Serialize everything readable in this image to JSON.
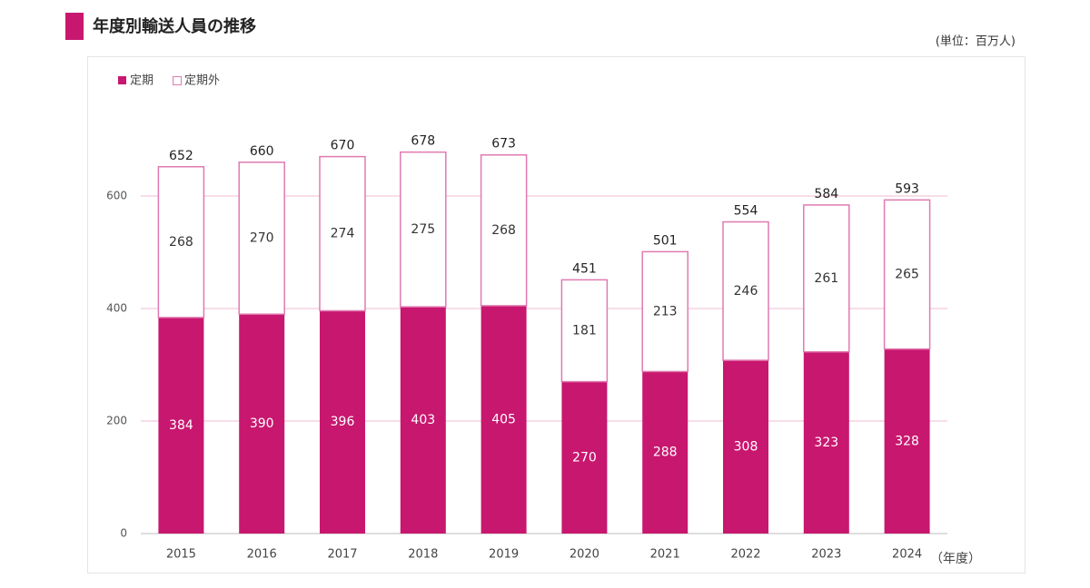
{
  "chart_data": {
    "type": "stacked_bar",
    "title": "年度別輸送人員の推移",
    "unit": "(単位：百万人)",
    "x_label": "（年度）",
    "categories": [
      "2015",
      "2016",
      "2017",
      "2018",
      "2019",
      "2020",
      "2021",
      "2022",
      "2023",
      "2024"
    ],
    "series": [
      {
        "name": "定期",
        "color": "#c8176f",
        "values": [
          384,
          390,
          396,
          403,
          405,
          270,
          288,
          308,
          323,
          328
        ]
      },
      {
        "name": "定期外",
        "color": "#ffffff",
        "stroke": "#e07ab0",
        "values": [
          268,
          270,
          274,
          275,
          268,
          181,
          213,
          246,
          261,
          265
        ]
      }
    ],
    "totals": [
      652,
      660,
      670,
      678,
      673,
      451,
      501,
      554,
      584,
      593
    ],
    "ylim": [
      0,
      700
    ],
    "yticks": [
      0,
      200,
      400,
      600
    ],
    "grid": true
  }
}
